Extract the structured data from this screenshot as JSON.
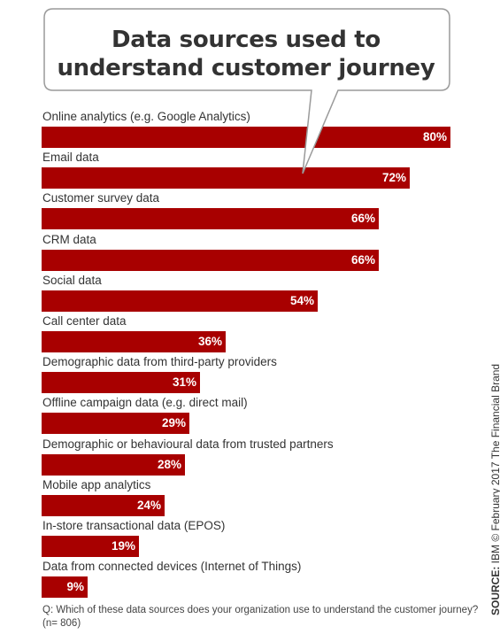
{
  "chart_data": {
    "type": "bar",
    "orientation": "horizontal",
    "title": "Data sources used to understand customer journey",
    "title_lines": [
      "Data sources used to",
      "understand customer journey"
    ],
    "categories": [
      "Online analytics (e.g. Google Analytics)",
      "Email data",
      "Customer survey data",
      "CRM data",
      "Social data",
      "Call center data",
      "Demographic data from third-party providers",
      "Offline campaign data (e.g. direct mail)",
      "Demographic or behavioural data from trusted partners",
      "Mobile app analytics",
      "In-store transactional data (EPOS)",
      "Data from connected devices (Internet of Things)"
    ],
    "values": [
      80,
      72,
      66,
      66,
      54,
      36,
      31,
      29,
      28,
      24,
      19,
      9
    ],
    "value_labels": [
      "80%",
      "72%",
      "66%",
      "66%",
      "54%",
      "36%",
      "31%",
      "29%",
      "28%",
      "24%",
      "19%",
      "9%"
    ],
    "unit": "%",
    "xlim": [
      0,
      80
    ],
    "bar_color": "#a80000",
    "grid": false,
    "legend": "none"
  },
  "footnote": {
    "line1": "Q: Which of these data sources does your organization use to understand the customer journey?",
    "line2": "(n= 806)"
  },
  "source": {
    "label": "SOURCE:",
    "text": "IBM  © February 2017 The Financial Brand"
  }
}
